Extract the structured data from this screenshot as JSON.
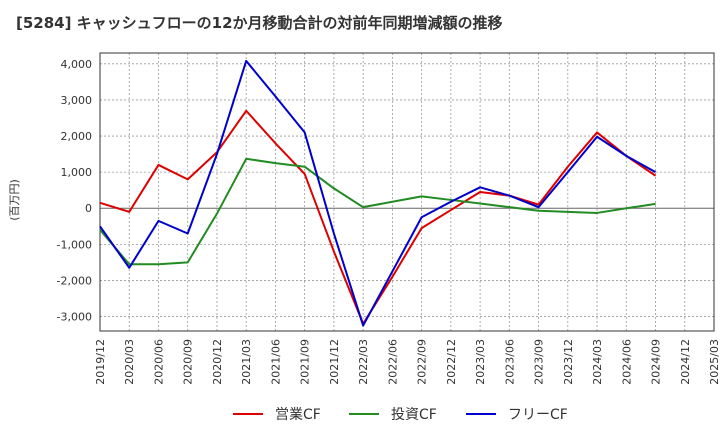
{
  "chart_data": {
    "type": "line",
    "title": "[5284]  キャッシュフローの12か月移動合計の対前年同期増減額の推移",
    "ylabel": "(百万円)",
    "xlabel": "",
    "x": [
      "2019/12",
      "2020/03",
      "2020/06",
      "2020/09",
      "2020/12",
      "2021/03",
      "2021/06",
      "2021/09",
      "2021/12",
      "2022/03",
      "2022/06",
      "2022/09",
      "2022/12",
      "2023/03",
      "2023/06",
      "2023/09",
      "2023/12",
      "2024/03",
      "2024/06",
      "2024/09",
      "2024/12",
      "2025/03"
    ],
    "ylim": [
      -3400,
      4300
    ],
    "yticks": [
      -3000,
      -2000,
      -1000,
      0,
      1000,
      2000,
      3000,
      4000
    ],
    "ytick_labels": [
      "-3,000",
      "-2,000",
      "-1,000",
      "0",
      "1,000",
      "2,000",
      "3,000",
      "4,000"
    ],
    "grid": true,
    "legend_position": "bottom",
    "series": [
      {
        "name": "営業CF",
        "color": "#dd0000",
        "values": [
          150,
          -100,
          1200,
          800,
          1550,
          2700,
          1800,
          950,
          -1200,
          -3200,
          -1900,
          -550,
          -50,
          450,
          350,
          100,
          1150,
          2100,
          1450,
          900,
          null,
          null
        ]
      },
      {
        "name": "投資CF",
        "color": "#228b22",
        "values": [
          -600,
          -1550,
          -1550,
          -1500,
          -150,
          1370,
          1250,
          1150,
          550,
          30,
          180,
          330,
          230,
          130,
          30,
          -70,
          -100,
          -130,
          0,
          120,
          null,
          null
        ]
      },
      {
        "name": "フリーCF",
        "color": "#0000cc",
        "values": [
          -500,
          -1650,
          -350,
          -700,
          1500,
          4080,
          3100,
          2100,
          -700,
          -3250,
          -1750,
          -250,
          180,
          580,
          350,
          30,
          1000,
          1980,
          1450,
          1000,
          null,
          null
        ]
      }
    ]
  }
}
